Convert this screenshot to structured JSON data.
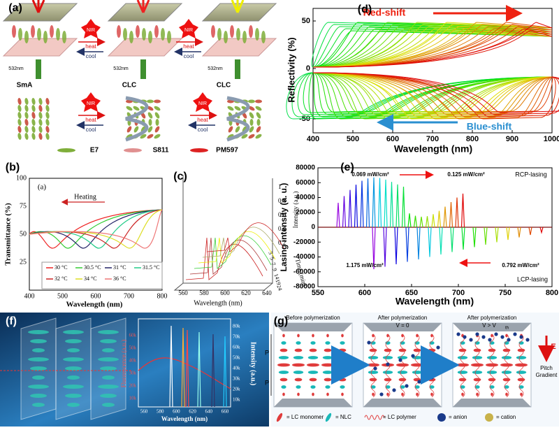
{
  "panels": {
    "a": {
      "label": "(a)",
      "arrows": [
        {
          "top": "NIR",
          "right": "heat",
          "left": "cool"
        },
        {
          "top": "NIR",
          "right": "heat",
          "left": "cool"
        }
      ],
      "states": [
        "SmA",
        "CLC",
        "CLC"
      ],
      "laser": "532nm",
      "legend": [
        "E7",
        "S811",
        "PM597"
      ]
    },
    "b": {
      "label": "(b)",
      "inset_label": "(a)",
      "annotation": "Heating",
      "y_label": "Transmittance (%)",
      "x_label": "Wavelength (nm)",
      "xticks": [
        400,
        500,
        600,
        700,
        800
      ],
      "yticks": [
        25,
        50,
        75,
        100
      ],
      "legend": [
        "30 °C",
        "30.5 °C",
        "31 °C",
        "31.5 °C",
        "32 °C",
        "34 °C",
        "36 °C"
      ]
    },
    "c": {
      "label": "(c)",
      "x_label": "Wavelength (nm)",
      "z_label": "Intensity (a.u.)",
      "y_label": "Time (min)",
      "xticks": [
        560,
        580,
        600,
        620,
        640
      ],
      "zticks": [
        0.2,
        0.4,
        0.6,
        0.8,
        1.0
      ],
      "yticks": [
        3,
        5,
        7,
        9,
        14,
        19,
        24
      ]
    },
    "d": {
      "label": "(d)",
      "red": "Red-shift",
      "blue": "Blue-shift",
      "y_label": "Reflectivity (%)",
      "x_label": "Wavelength (nm)",
      "xticks": [
        400,
        500,
        600,
        700,
        800,
        900,
        1000
      ],
      "yticks": [
        50,
        0,
        -50
      ]
    },
    "e": {
      "label": "(e)",
      "notes": [
        "0.069 mW/cm²",
        "0.125 mW/cm²",
        "RCP-lasing",
        "1.175 mW/cm²",
        "0.792 mW/cm²",
        "LCP-lasing"
      ],
      "y_label": "Lasing intensity (a. u.)",
      "x_label": "Wavelength (nm)",
      "yticks": [
        80000,
        60000,
        40000,
        20000,
        0,
        -20000,
        -40000,
        -60000,
        -80000
      ],
      "xticks": [
        550,
        600,
        650,
        700,
        750,
        800
      ]
    },
    "f": {
      "label": "(f)",
      "left_label": "Fluorescence (a.u.)",
      "right_label": "Intensity (a.u.)",
      "x_label": "Wavelength (nm)",
      "xticks": [
        560,
        580,
        600,
        620,
        640,
        660
      ],
      "left_ticks": [
        "10k",
        "20k",
        "30k",
        "40k",
        "50k",
        "60k"
      ],
      "right_ticks": [
        "10k",
        "20k",
        "30k",
        "40k",
        "50k",
        "60k",
        "70k",
        "80k"
      ]
    },
    "g": {
      "label": "(g)",
      "stages": [
        "Before polymerization",
        "After polymerization",
        "After polymerization"
      ],
      "conds": [
        "V = 0",
        "V > V",
        "th"
      ],
      "pitch": "P",
      "field": "E",
      "gradient": [
        "Pitch",
        "Gradient"
      ],
      "legend": [
        "= LC monomer",
        "= NLC",
        "= LC polymer",
        "= anion",
        "= cation"
      ]
    }
  }
}
